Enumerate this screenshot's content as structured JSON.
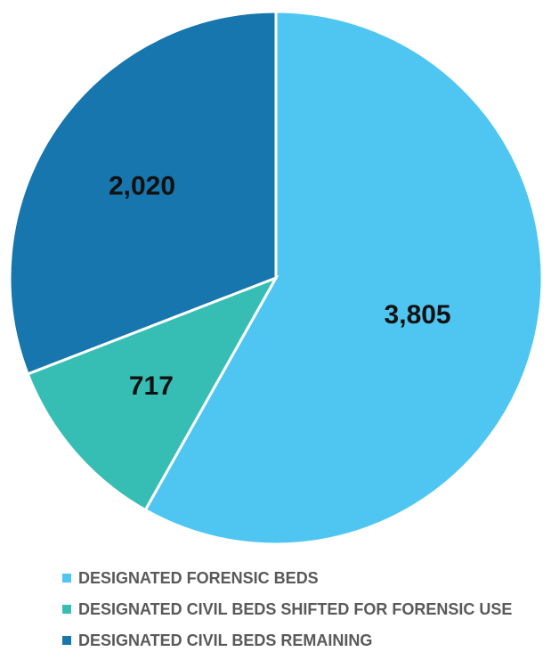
{
  "chart_data": {
    "type": "pie",
    "title": "",
    "start_angle_deg": 0,
    "direction": "clockwise",
    "legend_position": "bottom",
    "slices": [
      {
        "name": "DESIGNATED FORENSIC BEDS",
        "value": 3805,
        "label": "3,805",
        "color": "#4FC6F2"
      },
      {
        "name": "DESIGNATED CIVIL BEDS SHIFTED FOR FORENSIC USE",
        "value": 717,
        "label": "717",
        "color": "#37BEB4"
      },
      {
        "name": "DESIGNATED CIVIL BEDS REMAINING",
        "value": 2020,
        "label": "2,020",
        "color": "#1676AD"
      }
    ]
  }
}
